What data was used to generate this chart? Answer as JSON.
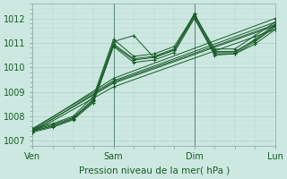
{
  "xlabel": "Pression niveau de la mer( hPa )",
  "bg_color": "#cce8e0",
  "grid_major_color": "#aacccc",
  "grid_minor_color": "#b8d8d4",
  "line_color": "#1a5c2a",
  "xtick_labels": [
    "Ven",
    "Sam",
    "Dim",
    "Lun"
  ],
  "ylim": [
    1006.8,
    1012.6
  ],
  "yticks": [
    1007,
    1008,
    1009,
    1010,
    1011,
    1012
  ],
  "series": [
    {
      "x": [
        0,
        0.25,
        0.5,
        0.75,
        1.0,
        1.25,
        1.5,
        1.75,
        2.0,
        2.25,
        2.5,
        2.75,
        3.0
      ],
      "y": [
        1007.5,
        1007.7,
        1008.0,
        1008.8,
        1011.15,
        1010.45,
        1010.55,
        1010.85,
        1012.15,
        1010.75,
        1010.75,
        1011.3,
        1011.85
      ]
    },
    {
      "x": [
        0,
        0.25,
        0.5,
        0.75,
        1.0,
        1.25,
        1.5,
        1.75,
        2.0,
        2.25,
        2.5,
        2.75,
        3.0
      ],
      "y": [
        1007.4,
        1007.6,
        1007.9,
        1008.7,
        1011.05,
        1011.3,
        1010.4,
        1010.7,
        1012.2,
        1010.65,
        1010.65,
        1011.1,
        1011.7
      ]
    },
    {
      "x": [
        0,
        0.25,
        0.5,
        0.75,
        1.0,
        1.25,
        1.5,
        1.75,
        2.0,
        2.25,
        2.5,
        2.75,
        3.0
      ],
      "y": [
        1007.35,
        1007.55,
        1007.85,
        1008.55,
        1010.85,
        1010.2,
        1010.3,
        1010.6,
        1012.0,
        1010.5,
        1010.55,
        1010.95,
        1011.55
      ]
    },
    {
      "x": [
        0,
        0.25,
        0.5,
        0.75,
        1.0,
        1.25,
        1.5,
        1.75,
        2.0,
        2.25,
        2.5,
        2.75,
        3.0
      ],
      "y": [
        1007.45,
        1007.65,
        1007.95,
        1008.65,
        1010.95,
        1010.35,
        1010.45,
        1010.75,
        1012.1,
        1010.6,
        1010.6,
        1011.15,
        1011.75
      ]
    },
    {
      "x": [
        0,
        0.25,
        0.5,
        0.75,
        1.0,
        1.25,
        1.5,
        1.75,
        2.0,
        2.25,
        2.5,
        2.75,
        3.0
      ],
      "y": [
        1007.4,
        1007.6,
        1007.9,
        1008.6,
        1010.9,
        1010.3,
        1010.4,
        1010.7,
        1012.05,
        1010.55,
        1010.55,
        1011.05,
        1011.65
      ]
    },
    {
      "x": [
        0,
        1.0,
        3.0
      ],
      "y": [
        1007.4,
        1009.35,
        1011.7
      ]
    },
    {
      "x": [
        0,
        1.0,
        3.0
      ],
      "y": [
        1007.45,
        1009.55,
        1012.0
      ]
    },
    {
      "x": [
        0,
        1.0,
        3.0
      ],
      "y": [
        1007.35,
        1009.2,
        1011.55
      ]
    },
    {
      "x": [
        0,
        1.0,
        3.0
      ],
      "y": [
        1007.5,
        1009.45,
        1011.85
      ]
    },
    {
      "x": [
        0,
        1.0,
        3.0
      ],
      "y": [
        1007.4,
        1009.4,
        1011.75
      ]
    }
  ]
}
